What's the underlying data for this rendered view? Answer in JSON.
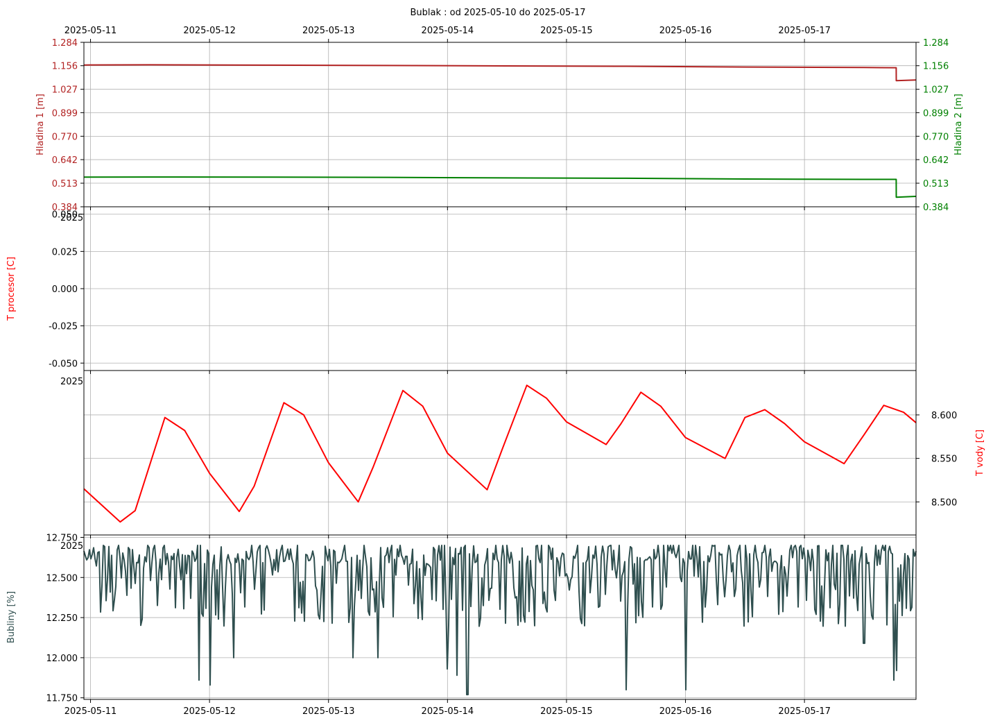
{
  "chart_data": {
    "type": "line",
    "title": "Bublak : od 2025-05-10 do 2025-05-17",
    "date_ticks": [
      "2025-05-11",
      "2025-05-12",
      "2025-05-13",
      "2025-05-14",
      "2025-05-15",
      "2025-05-16",
      "2025-05-17"
    ],
    "x_range": [
      "2025-05-10T22:40",
      "2025-05-17T22:30"
    ],
    "grid": true,
    "offset_label": "2025",
    "panels": [
      {
        "id": "levels",
        "ylabel_left": "Hladina 1 [m]",
        "ylabel_right": "Hladina 2 [m]",
        "left_color": "#b22222",
        "right_color": "#008000",
        "yticks": [
          "0.384",
          "0.513",
          "0.642",
          "0.770",
          "0.899",
          "1.027",
          "1.156",
          "1.284"
        ],
        "ylim": [
          0.384,
          1.284
        ],
        "series": [
          {
            "key": "h1",
            "color": "#b22222",
            "x": [
              "2025-05-10T22:40",
              "2025-05-11T12:00",
              "2025-05-12T12:00",
              "2025-05-13T12:00",
              "2025-05-14T12:00",
              "2025-05-15T12:00",
              "2025-05-16T12:00",
              "2025-05-17T12:00",
              "2025-05-17T18:30",
              "2025-05-17T18:31",
              "2025-05-17T22:30"
            ],
            "y": [
              1.16,
              1.161,
              1.159,
              1.157,
              1.155,
              1.153,
              1.149,
              1.146,
              1.145,
              1.074,
              1.078
            ]
          },
          {
            "key": "h2",
            "color": "#008000",
            "x": [
              "2025-05-10T22:40",
              "2025-05-11T12:00",
              "2025-05-12T12:00",
              "2025-05-13T12:00",
              "2025-05-14T12:00",
              "2025-05-15T12:00",
              "2025-05-16T12:00",
              "2025-05-17T12:00",
              "2025-05-17T18:30",
              "2025-05-17T18:31",
              "2025-05-17T22:30"
            ],
            "y": [
              0.546,
              0.547,
              0.546,
              0.545,
              0.542,
              0.54,
              0.536,
              0.534,
              0.534,
              0.436,
              0.441
            ]
          }
        ]
      },
      {
        "id": "cpu",
        "ylabel_left": "T procesor [C]",
        "left_color": "#ff0000",
        "yticks": [
          "-0.050",
          "-0.025",
          "0.000",
          "0.025",
          "0.050"
        ],
        "ylim": [
          -0.055,
          0.055
        ]
      },
      {
        "id": "water",
        "ylabel_right": "T vody [C]",
        "right_color": "#ff0000",
        "yticks": [
          "8.500",
          "8.550",
          "8.600"
        ],
        "ylim": [
          8.462,
          8.651
        ],
        "series": [
          {
            "key": "tv",
            "color": "#ff0000",
            "x": [
              "2025-05-10T22:40",
              "2025-05-11T06:00",
              "2025-05-11T09:00",
              "2025-05-11T15:00",
              "2025-05-11T19:00",
              "2025-05-12T00:00",
              "2025-05-12T06:00",
              "2025-05-12T09:00",
              "2025-05-12T15:00",
              "2025-05-12T19:00",
              "2025-05-13T00:00",
              "2025-05-13T06:00",
              "2025-05-13T09:00",
              "2025-05-13T15:00",
              "2025-05-13T19:00",
              "2025-05-14T00:00",
              "2025-05-14T08:00",
              "2025-05-14T11:00",
              "2025-05-14T16:00",
              "2025-05-14T20:00",
              "2025-05-15T00:00",
              "2025-05-15T08:00",
              "2025-05-15T11:00",
              "2025-05-15T15:00",
              "2025-05-15T19:00",
              "2025-05-16T00:00",
              "2025-05-16T08:00",
              "2025-05-16T12:00",
              "2025-05-16T16:00",
              "2025-05-16T20:00",
              "2025-05-17T00:00",
              "2025-05-17T08:00",
              "2025-05-17T12:00",
              "2025-05-17T16:00",
              "2025-05-17T20:00",
              "2025-05-17T22:30"
            ],
            "y": [
              8.515,
              8.477,
              8.49,
              8.597,
              8.582,
              8.533,
              8.489,
              8.518,
              8.614,
              8.6,
              8.545,
              8.5,
              8.54,
              8.628,
              8.61,
              8.556,
              8.514,
              8.56,
              8.634,
              8.619,
              8.592,
              8.566,
              8.59,
              8.626,
              8.61,
              8.574,
              8.55,
              8.597,
              8.606,
              8.59,
              8.569,
              8.544,
              8.577,
              8.611,
              8.603,
              8.591
            ]
          }
        ]
      },
      {
        "id": "bubbles",
        "ylabel_left": "Bubliny [%]",
        "left_color": "#2f4f4f",
        "yticks": [
          "11.750",
          "12.000",
          "12.250",
          "12.500",
          "12.750"
        ],
        "ylim": [
          11.74,
          12.765
        ],
        "series": [
          {
            "key": "bb",
            "color": "#2f4f4f",
            "kind": "noisy",
            "x": [
              "2025-05-10T22:40",
              "2025-05-17T22:30"
            ],
            "base": 12.4,
            "low": 12.05,
            "high": 12.7,
            "spikes": [
              {
                "x": "2025-05-11T15:00",
                "y": 12.7
              },
              {
                "x": "2025-05-11T22:00",
                "y": 11.86
              },
              {
                "x": "2025-05-12T00:00",
                "y": 11.83
              },
              {
                "x": "2025-05-12T05:00",
                "y": 12.0
              },
              {
                "x": "2025-05-13T05:00",
                "y": 12.0
              },
              {
                "x": "2025-05-13T10:00",
                "y": 12.0
              },
              {
                "x": "2025-05-14T00:00",
                "y": 11.93
              },
              {
                "x": "2025-05-14T02:00",
                "y": 11.89
              },
              {
                "x": "2025-05-14T04:00",
                "y": 11.77
              },
              {
                "x": "2025-05-14T08:00",
                "y": 12.68
              },
              {
                "x": "2025-05-15T12:00",
                "y": 11.8
              },
              {
                "x": "2025-05-16T00:00",
                "y": 11.8
              },
              {
                "x": "2025-05-17T12:00",
                "y": 12.09
              },
              {
                "x": "2025-05-17T18:00",
                "y": 11.86
              },
              {
                "x": "2025-05-17T18:40",
                "y": 11.92
              }
            ]
          }
        ]
      }
    ]
  }
}
